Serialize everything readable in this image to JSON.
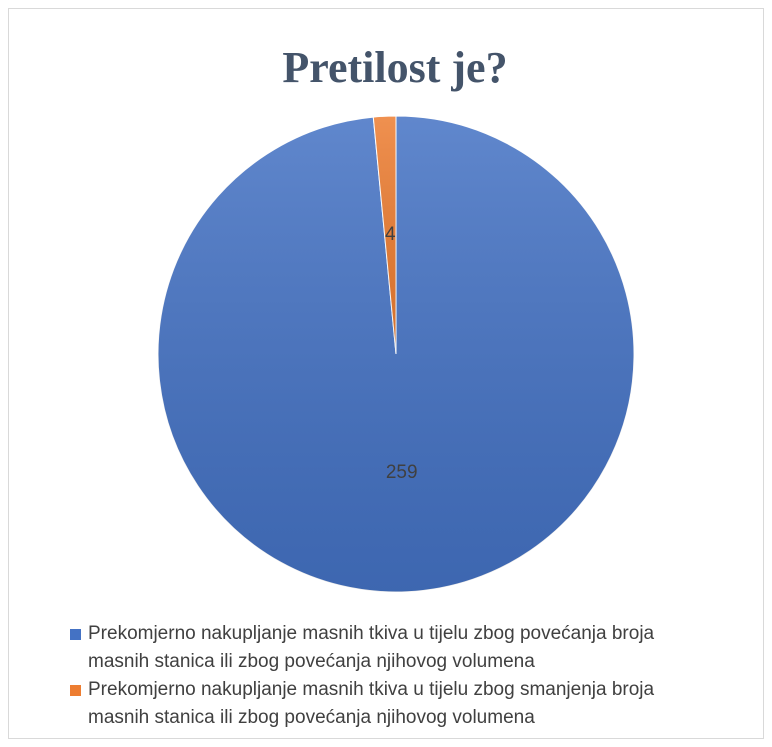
{
  "chart_data": {
    "type": "pie",
    "title": "Pretilost je?",
    "categories": [
      "Prekomjerno nakupljanje masnih tkiva u tijelu zbog povećanja broja masnih stanica ili zbog povećanja njihovog volumena",
      "Prekomjerno nakupljanje masnih tkiva u tijelu zbog smanjenja broja masnih stanica ili zbog povećanja njihovog volumena"
    ],
    "values": [
      259,
      4
    ],
    "colors": [
      "#4472c4",
      "#ed7d31"
    ],
    "legend": "bottom"
  }
}
